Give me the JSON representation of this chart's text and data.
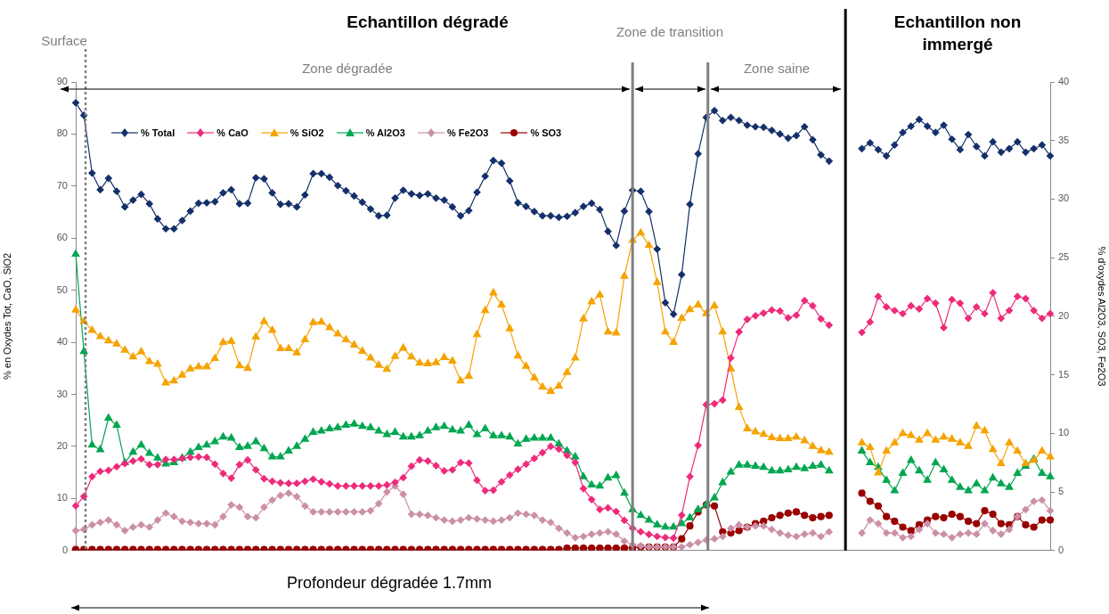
{
  "chart_data": {
    "type": "line",
    "title": "Echantillon dégradé",
    "ylabel": "% en Oxydes Tot, CaO, SiO2",
    "y2label": "% d'oxydes Al2O3, SO3, Fe2O3",
    "categories": [
      null,
      null,
      null,
      null,
      null,
      null,
      null,
      null,
      null,
      null,
      null,
      null,
      null,
      null,
      null,
      null,
      null,
      null,
      null,
      null,
      null,
      null,
      null,
      null,
      null,
      null,
      null,
      null,
      null,
      null,
      null,
      null,
      null,
      null,
      null,
      null,
      null,
      null,
      null,
      null,
      null,
      null,
      null,
      null,
      null,
      null,
      null,
      null,
      null,
      null,
      null,
      null,
      null,
      null,
      null,
      null,
      null,
      null,
      null,
      null,
      null,
      null,
      null,
      null,
      null,
      null,
      null,
      null,
      null,
      null,
      null,
      null,
      null,
      null,
      null,
      null,
      null,
      null,
      null,
      null,
      null,
      null,
      null,
      null,
      null,
      null,
      null,
      null,
      null,
      null,
      null,
      null,
      null,
      null,
      null,
      null,
      null,
      null,
      null,
      null,
      null,
      null,
      null,
      null,
      null,
      null,
      null,
      null,
      null,
      null,
      null,
      null,
      null,
      null,
      null,
      null,
      null,
      null,
      null,
      null
    ],
    "ylim": [
      0,
      90
    ],
    "yticks": [
      0,
      10,
      20,
      30,
      40,
      50,
      60,
      70,
      80,
      90
    ],
    "y2lim": [
      0,
      40
    ],
    "y2ticks": [
      0,
      5,
      10,
      15,
      20,
      25,
      30,
      35,
      40
    ],
    "legend": "top",
    "annotations": [
      "Surface",
      "Echantillon non immergé",
      "Zone dégradée",
      "Zone de transition",
      "Zone saine",
      "Profondeur dégradée 1.7mm"
    ],
    "series": [
      {
        "name": "% Total",
        "color": "#14306b",
        "marker": "diamond",
        "values": [
          86,
          83.6,
          72.5,
          69.3,
          71.5,
          69,
          66,
          67.3,
          68.4,
          66.6,
          63.7,
          61.8,
          61.8,
          63.4,
          65.2,
          66.7,
          66.8,
          67,
          68.7,
          69.3,
          66.6,
          66.7,
          71.6,
          71.4,
          68.7,
          66.5,
          66.6,
          66,
          68.3,
          72.4,
          72.4,
          71.7,
          70.1,
          69.1,
          68.1,
          66.9,
          65.6,
          64.3,
          64.4,
          67.7,
          69.2,
          68.5,
          68.2,
          68.5,
          67.7,
          67.3,
          66,
          64.3,
          65.3,
          68.8,
          71.9,
          74.9,
          74.4,
          71,
          66.8,
          66.1,
          65.1,
          64.3,
          64.3,
          64,
          64.2,
          64.9,
          66.1,
          66.7,
          65.5,
          61.3,
          58.6,
          65.2,
          69.2,
          69,
          65.1,
          57.9,
          47.6,
          45.4,
          53,
          66.5,
          76.2,
          83.2,
          84.5,
          82.6,
          83.2,
          82.6,
          81.7,
          81.4,
          81.3,
          80.7,
          80,
          79.2,
          79.7,
          81.4,
          78.9,
          76,
          74.8,
          null,
          null,
          null,
          null,
          null,
          null,
          null,
          null,
          null,
          null,
          null,
          null,
          null,
          null,
          null,
          null,
          null,
          null,
          null,
          null,
          null,
          null,
          null,
          null,
          null,
          null,
          null
        ]
      },
      {
        "name": "% CaO",
        "color": "#ee2a7b",
        "marker": "diamond",
        "values": [
          8.6,
          10.4,
          14.2,
          15.2,
          15.4,
          16.1,
          16.7,
          17.2,
          17.6,
          16.5,
          16.5,
          17.5,
          17.5,
          17.7,
          17.9,
          18,
          17.9,
          16.6,
          14.8,
          13.9,
          16.5,
          17.4,
          15.5,
          13.8,
          13.3,
          13,
          12.9,
          12.9,
          13.3,
          13.7,
          13.2,
          12.8,
          12.4,
          12.4,
          12.4,
          12.4,
          12.4,
          12.4,
          12.6,
          13.1,
          14,
          16.2,
          17.4,
          17.2,
          16.3,
          15.3,
          15.5,
          16.9,
          16.8,
          13.5,
          11.5,
          11.6,
          13.2,
          14.5,
          15.6,
          16.6,
          17.7,
          18.8,
          20,
          19.5,
          18.3,
          16.9,
          11.9,
          9.8,
          7.9,
          8.2,
          7.5,
          5.8,
          4.3,
          3.6,
          3.1,
          2.7,
          2.5,
          2.4,
          6.8,
          14.2,
          20.2,
          28,
          28.2,
          28.9,
          37,
          42,
          44.4,
          45.1,
          45.6,
          46.2,
          46,
          44.7,
          45.2,
          48,
          47,
          44.5,
          43.3,
          null,
          null,
          null,
          null,
          null,
          null,
          null,
          null,
          null,
          null,
          null,
          null,
          null,
          null,
          null,
          null,
          null,
          null,
          null,
          null,
          null,
          null,
          null,
          null,
          null,
          null,
          null
        ]
      },
      {
        "name": "% SiO2",
        "color": "#f5a300",
        "marker": "triangle",
        "values": [
          46.2,
          44,
          42.3,
          41.1,
          40.3,
          39.7,
          38.5,
          37.2,
          38.2,
          36.3,
          35.8,
          32.2,
          32.6,
          33.7,
          34.9,
          35.3,
          35.3,
          36.9,
          40,
          40.2,
          35.5,
          35,
          41,
          44,
          42.3,
          38.8,
          38.8,
          38,
          40.5,
          43.8,
          43.9,
          42.8,
          41.6,
          40.5,
          39.5,
          38.3,
          37,
          35.6,
          34.8,
          37.3,
          38.9,
          37.2,
          36,
          35.9,
          36.1,
          37.1,
          36.4,
          32.6,
          33.5,
          41.5,
          46.1,
          49.5,
          47.2,
          42.6,
          37.4,
          35.4,
          33.2,
          31.4,
          30.6,
          31.6,
          34.2,
          37,
          44.5,
          47.8,
          49.1,
          42,
          41.8,
          52.7,
          59.6,
          61,
          58.6,
          51.5,
          42,
          40,
          44.6,
          46.3,
          47.2,
          45.5,
          47,
          42,
          34.9,
          27.5,
          23.4,
          22.8,
          22.3,
          21.7,
          21.5,
          21.5,
          21.8,
          21.1,
          20,
          19.2,
          18.9,
          null,
          null,
          null,
          null,
          null,
          null,
          null,
          null,
          null,
          null,
          null,
          null,
          null,
          null,
          null,
          null,
          null,
          null,
          null,
          null,
          null,
          null,
          null,
          null,
          null,
          null,
          null
        ]
      },
      {
        "name": "% Al2O3",
        "color": "#00a651",
        "marker": "triangle",
        "axis": "y2",
        "values": [
          25.3,
          17,
          9,
          8.6,
          11.3,
          10.7,
          7.5,
          8.4,
          9,
          8.3,
          7.9,
          7.4,
          7.5,
          7.9,
          8.4,
          8.8,
          9,
          9.3,
          9.7,
          9.6,
          8.8,
          8.9,
          9.3,
          8.7,
          8,
          8,
          8.5,
          8.9,
          9.5,
          10.1,
          10.2,
          10.4,
          10.5,
          10.7,
          10.8,
          10.6,
          10.5,
          10.2,
          9.9,
          10.1,
          9.7,
          9.7,
          9.8,
          10.2,
          10.5,
          10.6,
          10.3,
          10.2,
          10.7,
          9.9,
          10.4,
          9.8,
          9.8,
          9.7,
          9.1,
          9.5,
          9.6,
          9.6,
          9.6,
          9.1,
          8.5,
          8,
          6.3,
          5.6,
          5.5,
          6.2,
          6.4,
          4.9,
          3.5,
          3,
          2.6,
          2.2,
          2,
          2,
          2.3,
          2.8,
          3.5,
          3.9,
          4.5,
          5.8,
          6.7,
          7.3,
          7.3,
          7.2,
          7.1,
          6.8,
          6.8,
          6.9,
          7.1,
          7,
          7.2,
          7.3,
          6.8,
          null,
          null,
          null,
          null,
          null,
          null,
          null,
          null,
          null,
          null,
          null,
          null,
          null,
          null,
          null,
          null,
          null,
          null,
          null,
          null,
          null,
          null,
          null,
          null,
          null,
          null,
          null
        ]
      },
      {
        "name": "% Fe2O3",
        "color": "#cc8fa8",
        "marker": "diamond",
        "axis": "y2",
        "values": [
          1.7,
          1.8,
          2.2,
          2.4,
          2.6,
          2.2,
          1.7,
          2,
          2.2,
          2,
          2.6,
          3.2,
          2.9,
          2.5,
          2.4,
          2.3,
          2.3,
          2.2,
          2.9,
          3.9,
          3.7,
          2.9,
          2.8,
          3.7,
          4.3,
          4.7,
          4.9,
          4.6,
          3.8,
          3.3,
          3.3,
          3.3,
          3.3,
          3.3,
          3.3,
          3.3,
          3.4,
          4,
          5,
          5.5,
          4.8,
          3.1,
          3.1,
          3,
          2.8,
          2.6,
          2.5,
          2.6,
          2.8,
          2.7,
          2.6,
          2.5,
          2.6,
          2.8,
          3.2,
          3.1,
          3,
          2.6,
          2.4,
          1.9,
          1.5,
          1.1,
          1.2,
          1.4,
          1.5,
          1.6,
          1.4,
          0.8,
          0.5,
          0.4,
          0.3,
          0.3,
          0.3,
          0.3,
          0.3,
          0.5,
          0.7,
          0.9,
          1,
          1.2,
          1.9,
          2.2,
          2,
          2.1,
          2.1,
          1.8,
          1.5,
          1.3,
          1.2,
          1.4,
          1.5,
          1.2,
          1.6,
          null,
          null,
          null,
          null,
          null,
          null,
          null,
          null,
          null,
          null,
          null,
          null,
          null,
          null,
          null,
          null,
          null,
          null,
          null,
          null,
          null,
          null,
          null,
          null,
          null,
          null,
          null
        ]
      },
      {
        "name": "% SO3",
        "color": "#990000",
        "marker": "circle",
        "axis": "y2",
        "values": [
          0.1,
          0.1,
          0.1,
          0.1,
          0.1,
          0.1,
          0.1,
          0.1,
          0.1,
          0.1,
          0.1,
          0.1,
          0.1,
          0.1,
          0.1,
          0.1,
          0.1,
          0.1,
          0.1,
          0.1,
          0.1,
          0.1,
          0.1,
          0.1,
          0.1,
          0.1,
          0.1,
          0.1,
          0.1,
          0.1,
          0.1,
          0.1,
          0.1,
          0.1,
          0.1,
          0.1,
          0.1,
          0.1,
          0.1,
          0.1,
          0.1,
          0.1,
          0.1,
          0.1,
          0.1,
          0.1,
          0.1,
          0.1,
          0.1,
          0.1,
          0.1,
          0.1,
          0.1,
          0.1,
          0.1,
          0.1,
          0.1,
          0.1,
          0.1,
          0.1,
          0.2,
          0.2,
          0.2,
          0.2,
          0.2,
          0.2,
          0.2,
          0.2,
          0.25,
          0.3,
          0.3,
          0.3,
          0.3,
          0.3,
          1,
          2.1,
          3.3,
          3.9,
          3.8,
          1.6,
          1.5,
          1.7,
          2,
          2.3,
          2.5,
          2.8,
          3,
          3.2,
          3.3,
          3,
          2.8,
          2.9,
          3,
          null,
          null,
          null,
          null,
          null,
          null,
          null,
          null,
          null,
          null,
          null,
          null,
          null,
          null,
          null,
          null,
          null,
          null,
          null,
          null,
          null,
          null,
          null,
          null,
          null,
          null,
          null
        ]
      },
      {
        "color": "#14306b",
        "marker": "diamond",
        "values": [
          null,
          null,
          null,
          null,
          null,
          null,
          null,
          null,
          null,
          null,
          null,
          null,
          null,
          null,
          null,
          null,
          null,
          null,
          null,
          null,
          null,
          null,
          null,
          null,
          null,
          null,
          null,
          null,
          null,
          null,
          null,
          null,
          null,
          null,
          null,
          null,
          null,
          null,
          null,
          null,
          null,
          null,
          null,
          null,
          null,
          null,
          null,
          null,
          null,
          null,
          null,
          null,
          null,
          null,
          null,
          null,
          null,
          null,
          null,
          null,
          null,
          null,
          null,
          null,
          null,
          null,
          null,
          null,
          null,
          null,
          null,
          null,
          null,
          null,
          null,
          null,
          null,
          null,
          null,
          null,
          null,
          null,
          null,
          null,
          null,
          null,
          null,
          null,
          null,
          null,
          null,
          null,
          null,
          null,
          null,
          null,
          77.2,
          78.3,
          77,
          75.8,
          77.9,
          80.3,
          81.5,
          82.8,
          81.5,
          80.3,
          81.7,
          79,
          77,
          79.9,
          77.6,
          75.8,
          78.5,
          76.5,
          77.2,
          78.5,
          76.5,
          77.2,
          77.9,
          75.8
        ]
      },
      {
        "color": "#ee2a7b",
        "marker": "diamond",
        "values": [
          null,
          null,
          null,
          null,
          null,
          null,
          null,
          null,
          null,
          null,
          null,
          null,
          null,
          null,
          null,
          null,
          null,
          null,
          null,
          null,
          null,
          null,
          null,
          null,
          null,
          null,
          null,
          null,
          null,
          null,
          null,
          null,
          null,
          null,
          null,
          null,
          null,
          null,
          null,
          null,
          null,
          null,
          null,
          null,
          null,
          null,
          null,
          null,
          null,
          null,
          null,
          null,
          null,
          null,
          null,
          null,
          null,
          null,
          null,
          null,
          null,
          null,
          null,
          null,
          null,
          null,
          null,
          null,
          null,
          null,
          null,
          null,
          null,
          null,
          null,
          null,
          null,
          null,
          null,
          null,
          null,
          null,
          null,
          null,
          null,
          null,
          null,
          null,
          null,
          null,
          null,
          null,
          null,
          null,
          null,
          null,
          41.9,
          43.9,
          48.8,
          46.8,
          46.1,
          45.5,
          47,
          46.4,
          48.4,
          47.5,
          42.8,
          48.2,
          47.5,
          44.6,
          46.8,
          45.5,
          49.5,
          44.6,
          46.1,
          48.8,
          48.4,
          46.1,
          44.6,
          45.5
        ]
      },
      {
        "color": "#f5a300",
        "marker": "triangle",
        "values": [
          null,
          null,
          null,
          null,
          null,
          null,
          null,
          null,
          null,
          null,
          null,
          null,
          null,
          null,
          null,
          null,
          null,
          null,
          null,
          null,
          null,
          null,
          null,
          null,
          null,
          null,
          null,
          null,
          null,
          null,
          null,
          null,
          null,
          null,
          null,
          null,
          null,
          null,
          null,
          null,
          null,
          null,
          null,
          null,
          null,
          null,
          null,
          null,
          null,
          null,
          null,
          null,
          null,
          null,
          null,
          null,
          null,
          null,
          null,
          null,
          null,
          null,
          null,
          null,
          null,
          null,
          null,
          null,
          null,
          null,
          null,
          null,
          null,
          null,
          null,
          null,
          null,
          null,
          null,
          null,
          null,
          null,
          null,
          null,
          null,
          null,
          null,
          null,
          null,
          null,
          null,
          null,
          null,
          null,
          null,
          null,
          20.7,
          19.8,
          14.9,
          19.1,
          20.7,
          22.5,
          22.1,
          21.2,
          22.5,
          21.2,
          21.8,
          21.4,
          20.7,
          20,
          23.9,
          23,
          19.4,
          16.7,
          20.7,
          19.1,
          16.7,
          17.3,
          19.1,
          18
        ]
      },
      {
        "color": "#00a651",
        "marker": "triangle",
        "axis": "y2",
        "values": [
          null,
          null,
          null,
          null,
          null,
          null,
          null,
          null,
          null,
          null,
          null,
          null,
          null,
          null,
          null,
          null,
          null,
          null,
          null,
          null,
          null,
          null,
          null,
          null,
          null,
          null,
          null,
          null,
          null,
          null,
          null,
          null,
          null,
          null,
          null,
          null,
          null,
          null,
          null,
          null,
          null,
          null,
          null,
          null,
          null,
          null,
          null,
          null,
          null,
          null,
          null,
          null,
          null,
          null,
          null,
          null,
          null,
          null,
          null,
          null,
          null,
          null,
          null,
          null,
          null,
          null,
          null,
          null,
          null,
          null,
          null,
          null,
          null,
          null,
          null,
          null,
          null,
          null,
          null,
          null,
          null,
          null,
          null,
          null,
          null,
          null,
          null,
          null,
          null,
          null,
          null,
          null,
          null,
          null,
          null,
          null,
          8.5,
          7.5,
          7.1,
          6,
          5.1,
          6.6,
          7.7,
          6.8,
          6,
          7.5,
          6.9,
          6,
          5.4,
          5.1,
          5.7,
          5.1,
          6.2,
          5.7,
          5.4,
          6.6,
          7.2,
          7.8,
          6.6,
          6.3
        ]
      },
      {
        "color": "#cc8fa8",
        "marker": "diamond",
        "axis": "y2",
        "values": [
          null,
          null,
          null,
          null,
          null,
          null,
          null,
          null,
          null,
          null,
          null,
          null,
          null,
          null,
          null,
          null,
          null,
          null,
          null,
          null,
          null,
          null,
          null,
          null,
          null,
          null,
          null,
          null,
          null,
          null,
          null,
          null,
          null,
          null,
          null,
          null,
          null,
          null,
          null,
          null,
          null,
          null,
          null,
          null,
          null,
          null,
          null,
          null,
          null,
          null,
          null,
          null,
          null,
          null,
          null,
          null,
          null,
          null,
          null,
          null,
          null,
          null,
          null,
          null,
          null,
          null,
          null,
          null,
          null,
          null,
          null,
          null,
          null,
          null,
          null,
          null,
          null,
          null,
          null,
          null,
          null,
          null,
          null,
          null,
          null,
          null,
          null,
          null,
          null,
          null,
          null,
          null,
          null,
          null,
          null,
          null,
          1.5,
          2.6,
          2.3,
          1.5,
          1.5,
          1.1,
          1.2,
          1.8,
          2.3,
          1.5,
          1.4,
          1.1,
          1.4,
          1.5,
          1.4,
          2.3,
          1.7,
          1.4,
          1.8,
          2.9,
          3.5,
          4.2,
          4.3,
          3.4
        ]
      },
      {
        "color": "#990000",
        "marker": "circle",
        "axis": "y2",
        "values": [
          null,
          null,
          null,
          null,
          null,
          null,
          null,
          null,
          null,
          null,
          null,
          null,
          null,
          null,
          null,
          null,
          null,
          null,
          null,
          null,
          null,
          null,
          null,
          null,
          null,
          null,
          null,
          null,
          null,
          null,
          null,
          null,
          null,
          null,
          null,
          null,
          null,
          null,
          null,
          null,
          null,
          null,
          null,
          null,
          null,
          null,
          null,
          null,
          null,
          null,
          null,
          null,
          null,
          null,
          null,
          null,
          null,
          null,
          null,
          null,
          null,
          null,
          null,
          null,
          null,
          null,
          null,
          null,
          null,
          null,
          null,
          null,
          null,
          null,
          null,
          null,
          null,
          null,
          null,
          null,
          null,
          null,
          null,
          null,
          null,
          null,
          null,
          null,
          null,
          null,
          null,
          null,
          null,
          null,
          null,
          null,
          4.9,
          4.2,
          3.8,
          2.9,
          2.5,
          2,
          1.7,
          2.2,
          2.6,
          2.9,
          2.8,
          3.1,
          2.9,
          2.5,
          2.3,
          3.4,
          3.1,
          2.3,
          2.2,
          2.9,
          2.2,
          2,
          2.6,
          2.6
        ]
      }
    ]
  }
}
